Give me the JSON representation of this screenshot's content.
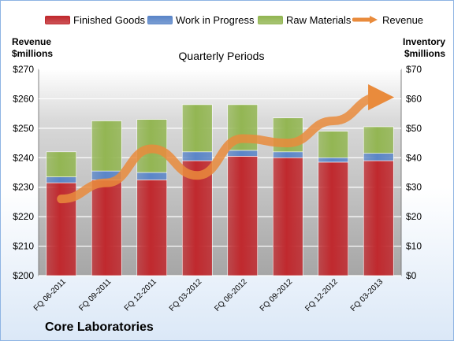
{
  "chart_data": {
    "type": "bar",
    "subtitle": "Quarterly Periods",
    "company": "Core Laboratories",
    "left_axis_title": [
      "Revenue",
      "$millions"
    ],
    "right_axis_title": [
      "Inventory",
      "$millions"
    ],
    "categories": [
      "FQ 06-2011",
      "FQ 09-2011",
      "FQ 12-2011",
      "FQ 03-2012",
      "FQ 06-2012",
      "FQ 09-2012",
      "FQ 12-2012",
      "FQ 03-2013"
    ],
    "left_axis": {
      "min": 200,
      "max": 270,
      "step": 10,
      "prefix": "$"
    },
    "right_axis": {
      "min": 0,
      "max": 70,
      "step": 10,
      "prefix": "$"
    },
    "stacked_series": [
      {
        "name": "Finished Goods",
        "color": "#c0292e",
        "values": [
          31.5,
          32.5,
          32.5,
          39.0,
          40.5,
          40.0,
          38.5,
          39.0
        ]
      },
      {
        "name": "Work in Progress",
        "color": "#5b86c8",
        "values": [
          2.0,
          3.0,
          2.5,
          3.0,
          2.0,
          2.0,
          1.5,
          2.5
        ]
      },
      {
        "name": "Raw Materials",
        "color": "#93b653",
        "values": [
          8.5,
          17.0,
          18.0,
          16.0,
          15.5,
          11.5,
          9.0,
          9.0
        ]
      }
    ],
    "line_series": {
      "name": "Revenue",
      "color": "#e98b3c",
      "values": [
        226,
        231.5,
        243,
        234,
        246.5,
        245,
        252.5,
        260.5
      ]
    },
    "grid": true,
    "legend_position": "top"
  }
}
